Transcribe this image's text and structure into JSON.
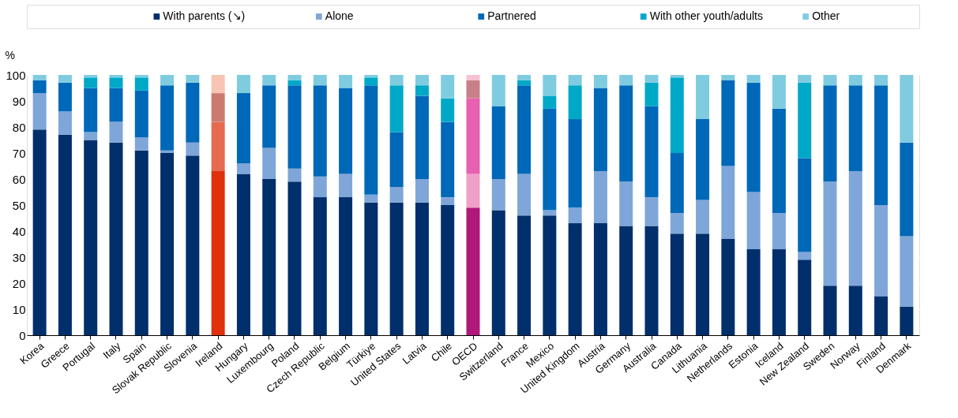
{
  "chart_data": {
    "type": "bar",
    "stacked": true,
    "ylabel": "%",
    "ylim": [
      0,
      100
    ],
    "yticks": [
      0,
      10,
      20,
      30,
      40,
      50,
      60,
      70,
      80,
      90,
      100
    ],
    "grid": "y",
    "legend": "top",
    "categories": [
      "Korea",
      "Greece",
      "Portugal",
      "Italy",
      "Spain",
      "Slovak Republic",
      "Slovenia",
      "Ireland",
      "Hungary",
      "Luxembourg",
      "Poland",
      "Czech Republic",
      "Belgium",
      "Türkiye",
      "United States",
      "Latvia",
      "Chile",
      "OECD",
      "Switzerland",
      "France",
      "Mexico",
      "United Kingdom",
      "Austria",
      "Germany",
      "Australia",
      "Canada",
      "Lithuania",
      "Netherlands",
      "Estonia",
      "Iceland",
      "New Zealand",
      "Sweden",
      "Norway",
      "Finland",
      "Denmark"
    ],
    "series": [
      {
        "name": "With parents (↘)",
        "color": "#002f6c",
        "values": [
          79,
          77,
          75,
          74,
          71,
          70,
          69,
          63,
          62,
          60,
          59,
          53,
          53,
          51,
          51,
          51,
          50,
          49,
          48,
          46,
          46,
          43,
          43,
          42,
          42,
          39,
          39,
          37,
          33,
          33,
          29,
          19,
          19,
          15,
          11
        ],
        "colors": [
          "#002f6c",
          "#002f6c",
          "#002f6c",
          "#002f6c",
          "#002f6c",
          "#002f6c",
          "#002f6c",
          "#e0300c",
          "#002f6c",
          "#002f6c",
          "#002f6c",
          "#002f6c",
          "#002f6c",
          "#002f6c",
          "#002f6c",
          "#002f6c",
          "#002f6c",
          "#b0187a",
          "#002f6c",
          "#002f6c",
          "#002f6c",
          "#002f6c",
          "#002f6c",
          "#002f6c",
          "#002f6c",
          "#002f6c",
          "#002f6c",
          "#002f6c",
          "#002f6c",
          "#002f6c",
          "#002f6c",
          "#002f6c",
          "#002f6c",
          "#002f6c",
          "#002f6c"
        ]
      },
      {
        "name": "Alone",
        "color": "#7fa6d8",
        "values": [
          14,
          9,
          3,
          8,
          5,
          1,
          5,
          19,
          4,
          12,
          5,
          8,
          9,
          3,
          6,
          9,
          3,
          13,
          12,
          16,
          2,
          6,
          20,
          17,
          11,
          8,
          13,
          28,
          22,
          14,
          3,
          40,
          44,
          35,
          27
        ],
        "colors": [
          "#7fa6d8",
          "#7fa6d8",
          "#7fa6d8",
          "#7fa6d8",
          "#7fa6d8",
          "#7fa6d8",
          "#7fa6d8",
          "#e66a50",
          "#7fa6d8",
          "#7fa6d8",
          "#7fa6d8",
          "#7fa6d8",
          "#7fa6d8",
          "#7fa6d8",
          "#7fa6d8",
          "#7fa6d8",
          "#7fa6d8",
          "#f0a0c8",
          "#7fa6d8",
          "#7fa6d8",
          "#7fa6d8",
          "#7fa6d8",
          "#7fa6d8",
          "#7fa6d8",
          "#7fa6d8",
          "#7fa6d8",
          "#7fa6d8",
          "#7fa6d8",
          "#7fa6d8",
          "#7fa6d8",
          "#7fa6d8",
          "#7fa6d8",
          "#7fa6d8",
          "#7fa6d8",
          "#7fa6d8"
        ]
      },
      {
        "name": "Partnered",
        "color": "#0068b8",
        "values": [
          5,
          11,
          17,
          13,
          18,
          25,
          23,
          11,
          27,
          24,
          32,
          35,
          33,
          42,
          21,
          32,
          29,
          29,
          28,
          34,
          39,
          34,
          32,
          37,
          35,
          23,
          31,
          33,
          42,
          40,
          36,
          37,
          33,
          46,
          36
        ],
        "colors": [
          "#0068b8",
          "#0068b8",
          "#0068b8",
          "#0068b8",
          "#0068b8",
          "#0068b8",
          "#0068b8",
          "#cc7a70",
          "#0068b8",
          "#0068b8",
          "#0068b8",
          "#0068b8",
          "#0068b8",
          "#0068b8",
          "#0068b8",
          "#0068b8",
          "#0068b8",
          "#e860b0",
          "#0068b8",
          "#0068b8",
          "#0068b8",
          "#0068b8",
          "#0068b8",
          "#0068b8",
          "#0068b8",
          "#0068b8",
          "#0068b8",
          "#0068b8",
          "#0068b8",
          "#0068b8",
          "#0068b8",
          "#0068b8",
          "#0068b8",
          "#0068b8",
          "#0068b8"
        ]
      },
      {
        "name": "With other youth/adults",
        "color": "#00a8c8",
        "values": [
          0,
          0,
          4,
          4,
          5,
          0,
          0,
          0,
          0,
          0,
          2,
          0,
          0,
          3,
          18,
          4,
          9,
          7,
          0,
          2,
          5,
          13,
          0,
          0,
          9,
          29,
          0,
          0,
          0,
          0,
          29,
          0,
          0,
          0,
          0
        ],
        "colors": [
          "#00a8c8",
          "#00a8c8",
          "#00a8c8",
          "#00a8c8",
          "#00a8c8",
          "#00a8c8",
          "#00a8c8",
          "#e8a090",
          "#00a8c8",
          "#00a8c8",
          "#00a8c8",
          "#00a8c8",
          "#00a8c8",
          "#00a8c8",
          "#00a8c8",
          "#00a8c8",
          "#00a8c8",
          "#c88088",
          "#00a8c8",
          "#00a8c8",
          "#00a8c8",
          "#00a8c8",
          "#00a8c8",
          "#00a8c8",
          "#00a8c8",
          "#00a8c8",
          "#00a8c8",
          "#00a8c8",
          "#00a8c8",
          "#00a8c8",
          "#00a8c8",
          "#00a8c8",
          "#00a8c8",
          "#00a8c8",
          "#00a8c8"
        ]
      },
      {
        "name": "Other",
        "color": "#7fcce0",
        "values": [
          2,
          3,
          1,
          1,
          1,
          4,
          3,
          7,
          7,
          4,
          2,
          4,
          5,
          1,
          4,
          4,
          9,
          2,
          12,
          2,
          8,
          4,
          5,
          4,
          3,
          1,
          17,
          2,
          3,
          13,
          3,
          4,
          4,
          4,
          26
        ],
        "colors": [
          "#7fcce0",
          "#7fcce0",
          "#7fcce0",
          "#7fcce0",
          "#7fcce0",
          "#7fcce0",
          "#7fcce0",
          "#f8c4b4",
          "#7fcce0",
          "#7fcce0",
          "#7fcce0",
          "#7fcce0",
          "#7fcce0",
          "#7fcce0",
          "#7fcce0",
          "#7fcce0",
          "#7fcce0",
          "#f8c0d4",
          "#7fcce0",
          "#7fcce0",
          "#7fcce0",
          "#7fcce0",
          "#7fcce0",
          "#7fcce0",
          "#7fcce0",
          "#7fcce0",
          "#7fcce0",
          "#7fcce0",
          "#7fcce0",
          "#7fcce0",
          "#7fcce0",
          "#7fcce0",
          "#7fcce0",
          "#7fcce0",
          "#7fcce0"
        ]
      }
    ]
  }
}
